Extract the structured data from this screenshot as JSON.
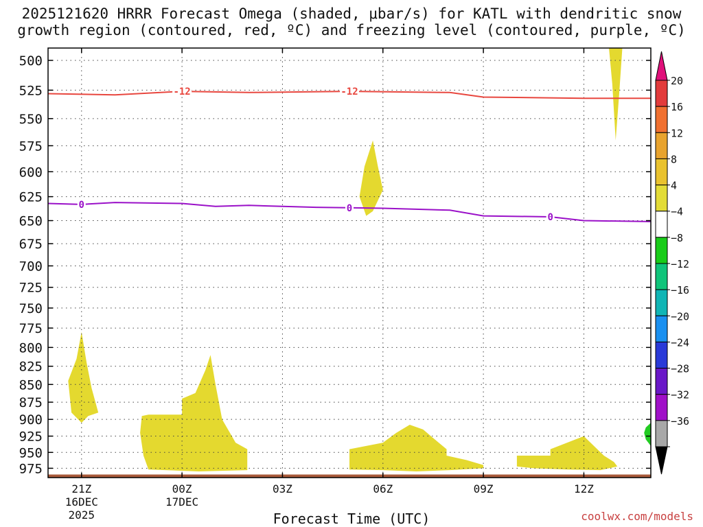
{
  "chart_data": {
    "type": "contour",
    "title_line1": "2025121620 HRRR Forecast Omega (shaded, μbar/s) for KATL with dendritic snow",
    "title_line2": "growth region (contoured, red, ºC) and freezing level (contoured, purple, ºC)",
    "xlabel": "Forecast Time (UTC)",
    "credit": "coolwx.com/models",
    "x_ticks": [
      {
        "hour": 1,
        "label": "21Z",
        "date": "16DEC",
        "year": "2025"
      },
      {
        "hour": 4,
        "label": "00Z",
        "date": "17DEC",
        "year": ""
      },
      {
        "hour": 7,
        "label": "03Z",
        "date": "",
        "year": ""
      },
      {
        "hour": 10,
        "label": "06Z",
        "date": "",
        "year": ""
      },
      {
        "hour": 13,
        "label": "09Z",
        "date": "",
        "year": ""
      },
      {
        "hour": 16,
        "label": "12Z",
        "date": "",
        "year": ""
      }
    ],
    "x_range": [
      0,
      18
    ],
    "y_range_hpa": [
      490,
      990
    ],
    "y_ticks": [
      500,
      525,
      550,
      575,
      600,
      625,
      650,
      675,
      700,
      725,
      750,
      775,
      800,
      825,
      850,
      875,
      900,
      925,
      950,
      975
    ],
    "contours": [
      {
        "name": "dgz-minus12",
        "label": "-12",
        "color": "#e8463e",
        "label_hours": [
          4,
          9
        ],
        "points": [
          [
            0,
            528
          ],
          [
            2,
            529
          ],
          [
            4,
            526
          ],
          [
            6,
            527
          ],
          [
            9,
            526
          ],
          [
            12,
            527
          ],
          [
            13,
            531
          ],
          [
            16,
            532
          ],
          [
            18,
            532
          ]
        ]
      },
      {
        "name": "freezing-level-0",
        "label": "0",
        "color": "#9a10c8",
        "label_hours": [
          1,
          9,
          15
        ],
        "points": [
          [
            0,
            632
          ],
          [
            1,
            633
          ],
          [
            2,
            631
          ],
          [
            4,
            632
          ],
          [
            5,
            635
          ],
          [
            6,
            634
          ],
          [
            8,
            636
          ],
          [
            10,
            637
          ],
          [
            12,
            639
          ],
          [
            13,
            645
          ],
          [
            15,
            646
          ],
          [
            16,
            650
          ],
          [
            18,
            651
          ]
        ]
      }
    ],
    "omega_regions": [
      {
        "name": "omega-upper-right",
        "color": "#e4d92f",
        "points": [
          [
            16.75,
            490
          ],
          [
            17.15,
            490
          ],
          [
            17.05,
            530
          ],
          [
            16.95,
            570
          ],
          [
            16.85,
            520
          ]
        ]
      },
      {
        "name": "omega-mid",
        "color": "#e4d92f",
        "points": [
          [
            9.3,
            625
          ],
          [
            9.45,
            595
          ],
          [
            9.7,
            570
          ],
          [
            9.85,
            595
          ],
          [
            10.0,
            618
          ],
          [
            9.7,
            640
          ],
          [
            9.5,
            645
          ]
        ]
      },
      {
        "name": "omega-left-1",
        "color": "#e4d92f",
        "points": [
          [
            0.6,
            845
          ],
          [
            0.85,
            815
          ],
          [
            1.0,
            780
          ],
          [
            1.15,
            820
          ],
          [
            1.3,
            855
          ],
          [
            1.5,
            890
          ],
          [
            1.2,
            895
          ],
          [
            1.0,
            905
          ],
          [
            0.7,
            890
          ]
        ]
      },
      {
        "name": "omega-left-2",
        "color": "#e4d92f",
        "points": [
          [
            2.75,
            920
          ],
          [
            2.8,
            895
          ],
          [
            3.0,
            893
          ],
          [
            3.3,
            893
          ],
          [
            4.0,
            893
          ],
          [
            4.0,
            870
          ],
          [
            4.4,
            862
          ],
          [
            4.7,
            830
          ],
          [
            4.85,
            810
          ],
          [
            5.0,
            850
          ],
          [
            5.2,
            900
          ],
          [
            5.6,
            935
          ],
          [
            5.95,
            945
          ],
          [
            5.95,
            978
          ],
          [
            4.5,
            980
          ],
          [
            3.0,
            977
          ],
          [
            2.85,
            955
          ]
        ]
      },
      {
        "name": "omega-mid-bottom",
        "color": "#e4d92f",
        "points": [
          [
            9.0,
            945
          ],
          [
            9.5,
            940
          ],
          [
            10.0,
            935
          ],
          [
            10.4,
            920
          ],
          [
            10.8,
            908
          ],
          [
            11.2,
            915
          ],
          [
            11.55,
            930
          ],
          [
            11.9,
            945
          ],
          [
            11.9,
            955
          ],
          [
            12.5,
            962
          ],
          [
            13.0,
            970
          ],
          [
            13.0,
            975
          ],
          [
            12.0,
            978
          ],
          [
            11.0,
            980
          ],
          [
            10.0,
            978
          ],
          [
            9.0,
            977
          ]
        ]
      },
      {
        "name": "omega-right-bottom",
        "color": "#e4d92f",
        "points": [
          [
            14.0,
            955
          ],
          [
            14.5,
            955
          ],
          [
            15.0,
            955
          ],
          [
            15.0,
            945
          ],
          [
            15.5,
            935
          ],
          [
            16.0,
            925
          ],
          [
            16.3,
            940
          ],
          [
            16.6,
            955
          ],
          [
            16.9,
            965
          ],
          [
            17.0,
            972
          ],
          [
            16.5,
            978
          ],
          [
            15.5,
            977
          ],
          [
            14.5,
            975
          ],
          [
            14.0,
            972
          ]
        ]
      },
      {
        "name": "omega-green-edge",
        "color": "#22cc22",
        "points": [
          [
            18.0,
            905
          ],
          [
            18.0,
            940
          ],
          [
            17.85,
            930
          ],
          [
            17.8,
            920
          ],
          [
            17.85,
            912
          ]
        ]
      }
    ],
    "ground": {
      "pressure_hpa": 985,
      "color": "#a85a3a"
    },
    "colorbar": {
      "levels": [
        "20",
        "16",
        "12",
        "8",
        "4",
        "−4",
        "−8",
        "−12",
        "−16",
        "−20",
        "−24",
        "−28",
        "−32",
        "−36"
      ],
      "colors": [
        "#e23b3b",
        "#f07030",
        "#e8a32e",
        "#e9c22e",
        "#e3dc37",
        "#ffffff",
        "#19cc19",
        "#10c47a",
        "#10b5b5",
        "#1a90f0",
        "#2a3ad8",
        "#6a18c8",
        "#a010c8",
        "#a8a8a8"
      ],
      "top_color": "#e0107a",
      "bottom_color": "#000000"
    }
  }
}
